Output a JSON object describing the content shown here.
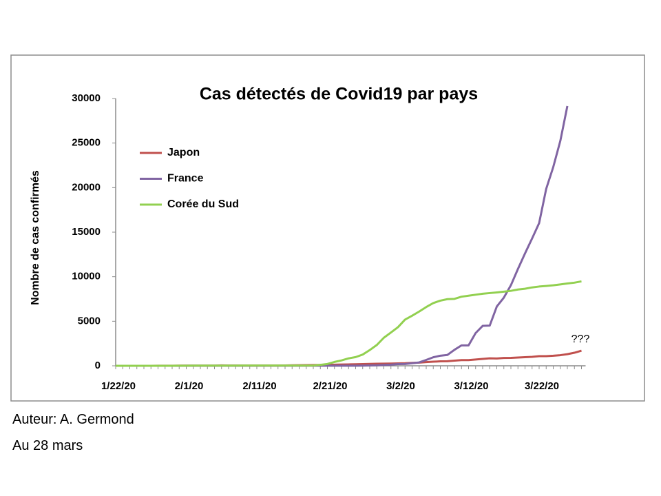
{
  "chart_data": {
    "type": "line",
    "title": "Cas détectés de Covid19 par pays",
    "ylabel": "Nombre de cas confirmés",
    "categories": [
      "1/22/20",
      null,
      null,
      null,
      null,
      null,
      null,
      null,
      null,
      null,
      "2/1/20",
      null,
      null,
      null,
      null,
      null,
      null,
      null,
      null,
      null,
      "2/11/20",
      null,
      null,
      null,
      null,
      null,
      null,
      null,
      null,
      null,
      "2/21/20",
      null,
      null,
      null,
      null,
      null,
      null,
      null,
      null,
      null,
      "3/2/20",
      null,
      null,
      null,
      null,
      null,
      null,
      null,
      null,
      null,
      "3/12/20",
      null,
      null,
      null,
      null,
      null,
      null,
      null,
      null,
      null,
      "3/22/20",
      null,
      null,
      null,
      null,
      null,
      null
    ],
    "series": [
      {
        "name": "Japon",
        "color": "#c0504d",
        "values": [
          2,
          1,
          2,
          2,
          4,
          4,
          7,
          7,
          11,
          15,
          20,
          20,
          20,
          22,
          22,
          45,
          25,
          25,
          26,
          26,
          26,
          28,
          28,
          29,
          43,
          59,
          66,
          74,
          84,
          94,
          105,
          122,
          147,
          159,
          170,
          189,
          214,
          228,
          241,
          256,
          274,
          293,
          331,
          360,
          420,
          461,
          502,
          511,
          581,
          639,
          639,
          701,
          773,
          839,
          825,
          878,
          889,
          924,
          963,
          1007,
          1086,
          1086,
          1128,
          1193,
          1307,
          1468,
          1693
        ]
      },
      {
        "name": "France",
        "color": "#8064a2",
        "values": [
          0,
          0,
          2,
          3,
          3,
          3,
          4,
          5,
          5,
          5,
          6,
          6,
          6,
          6,
          6,
          6,
          11,
          11,
          11,
          11,
          11,
          11,
          11,
          12,
          12,
          12,
          12,
          12,
          12,
          12,
          12,
          12,
          12,
          12,
          14,
          18,
          38,
          57,
          100,
          130,
          191,
          204,
          288,
          380,
          656,
          957,
          1134,
          1217,
          1792,
          2289,
          2289,
          3672,
          4480,
          4513,
          6650,
          7652,
          9043,
          10871,
          12612,
          14282,
          16018,
          19856,
          22304,
          25233,
          29155,
          null,
          null
        ]
      },
      {
        "name": "Corée du Sud",
        "color": "#92d050",
        "values": [
          1,
          1,
          2,
          2,
          3,
          4,
          4,
          4,
          4,
          11,
          12,
          15,
          15,
          16,
          19,
          23,
          24,
          24,
          25,
          27,
          28,
          28,
          28,
          28,
          28,
          29,
          30,
          31,
          31,
          104,
          204,
          433,
          602,
          833,
          977,
          1261,
          1766,
          2337,
          3150,
          3736,
          4335,
          5186,
          5621,
          6088,
          6593,
          7041,
          7314,
          7478,
          7513,
          7755,
          7869,
          7979,
          8086,
          8162,
          8236,
          8320,
          8413,
          8565,
          8652,
          8799,
          8897,
          8961,
          9037,
          9137,
          9241,
          9332,
          9478
        ]
      }
    ],
    "ylim": [
      0,
      30000
    ],
    "yticks": [
      0,
      5000,
      10000,
      15000,
      20000,
      25000,
      30000
    ],
    "legend": "upper left",
    "annotations": [
      "???"
    ]
  },
  "footer": [
    "Auteur: A. Germond",
    "Au 28 mars"
  ]
}
